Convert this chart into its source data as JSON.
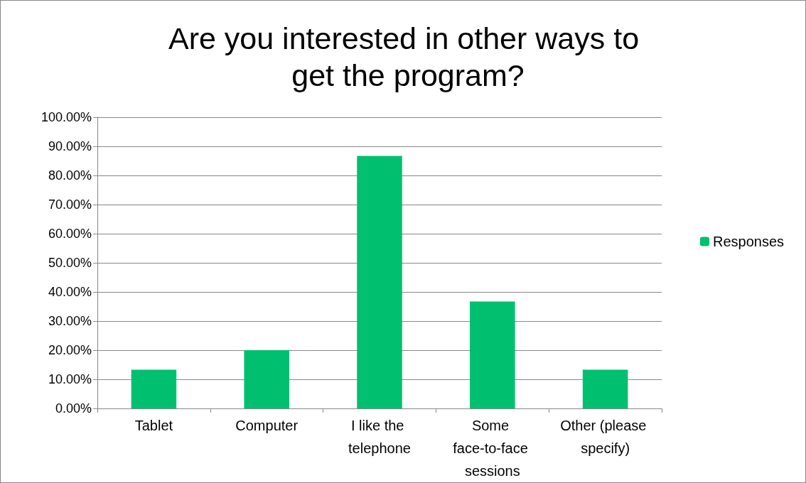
{
  "chart_data": {
    "type": "bar",
    "title": "Are you interested in other ways to get the program?",
    "categories": [
      "Tablet",
      "Computer",
      "I like the telephone",
      "Some face-to-face sessions",
      "Other (please specify)"
    ],
    "series": [
      {
        "name": "Responses",
        "color": "#00c070",
        "values": [
          13.3,
          20,
          86.7,
          36.7,
          13.3
        ]
      }
    ],
    "ylim": [
      0,
      100
    ],
    "yticks": [
      {
        "value": 0,
        "label": "0.00%"
      },
      {
        "value": 10,
        "label": "10.00%"
      },
      {
        "value": 20,
        "label": "20.00%"
      },
      {
        "value": 30,
        "label": "30.00%"
      },
      {
        "value": 40,
        "label": "40.00%"
      },
      {
        "value": 50,
        "label": "50.00%"
      },
      {
        "value": 60,
        "label": "60.00%"
      },
      {
        "value": 70,
        "label": "70.00%"
      },
      {
        "value": 80,
        "label": "80.00%"
      },
      {
        "value": 90,
        "label": "90.00%"
      },
      {
        "value": 100,
        "label": "100.00%"
      }
    ],
    "grid": "y",
    "legend": "right"
  }
}
